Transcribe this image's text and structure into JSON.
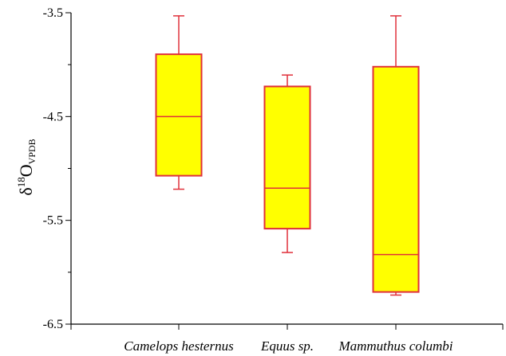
{
  "chart_data": {
    "type": "boxplot",
    "title": "",
    "xlabel": "",
    "ylabel": {
      "main": "δ",
      "superscript": "18",
      "base": "O",
      "subscript": "VPDB"
    },
    "ylim": [
      -6.5,
      -3.5
    ],
    "yticks": [
      "-3.5",
      "-4.5",
      "-5.5",
      "-6.5"
    ],
    "categories": [
      "Camelops hesternus",
      "Equus sp.",
      "Mammuthus columbi"
    ],
    "boxes": [
      {
        "category": "Camelops hesternus",
        "min": -5.2,
        "q1": -5.07,
        "median": -4.5,
        "q3": -3.9,
        "max": -3.53
      },
      {
        "category": "Equus sp.",
        "min": -5.81,
        "q1": -5.58,
        "median": -5.19,
        "q3": -4.21,
        "max": -4.1
      },
      {
        "category": "Mammuthus columbi",
        "min": -6.22,
        "q1": -6.19,
        "median": -5.83,
        "q3": -4.02,
        "max": -3.53
      }
    ],
    "box_fill": "#ffff00",
    "box_stroke": "#e0303a",
    "axis_color": "#000000",
    "grid": false,
    "legend": "none"
  }
}
